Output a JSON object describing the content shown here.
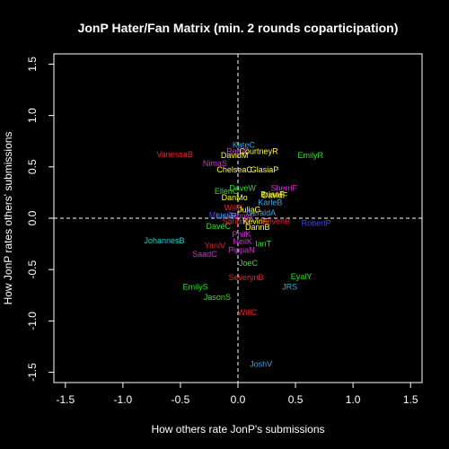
{
  "chart_data": {
    "type": "scatter",
    "title": "JonP Hater/Fan Matrix (min. 2 rounds coparticipation)",
    "xlabel": "How others rate JonP's submissions",
    "ylabel": "How JonP rates others' submissions",
    "xlim": [
      -1.6,
      1.6
    ],
    "ylim": [
      -1.6,
      1.6
    ],
    "xticks": [
      -1.5,
      -1.0,
      -0.5,
      0.0,
      0.5,
      1.0,
      1.5
    ],
    "xtick_labels": [
      "-1.5",
      "-1.0",
      "-0.5",
      "0.0",
      "0.5",
      "1.0",
      "1.5"
    ],
    "yticks": [
      -1.5,
      -1.0,
      -0.5,
      0.0,
      0.5,
      1.0,
      1.5
    ],
    "ytick_labels": [
      "-1.5",
      "-1.0",
      "-0.5",
      "0.0",
      "0.5",
      "1.0",
      "1.5"
    ],
    "reference_lines": {
      "x": 0,
      "y": 0,
      "style": "dashed"
    },
    "background": "#000000",
    "foreground": "#ffffff",
    "points": [
      {
        "label": "KateC",
        "x": 0.05,
        "y": 0.72,
        "color": "#39a7e0"
      },
      {
        "label": "RemC",
        "x": 0.0,
        "y": 0.66,
        "color": "#cc33cc"
      },
      {
        "label": "CourtneyR",
        "x": 0.18,
        "y": 0.66,
        "color": "#ffff44"
      },
      {
        "label": "VanessaB",
        "x": -0.55,
        "y": 0.63,
        "color": "#e3262c"
      },
      {
        "label": "DavidM",
        "x": -0.03,
        "y": 0.62,
        "color": "#ffff44"
      },
      {
        "label": "EmilyR",
        "x": 0.63,
        "y": 0.62,
        "color": "#33dd33"
      },
      {
        "label": "NimaS",
        "x": -0.2,
        "y": 0.54,
        "color": "#cc33cc"
      },
      {
        "label": "ChelseaC",
        "x": -0.03,
        "y": 0.48,
        "color": "#ffff44"
      },
      {
        "label": "GlasiaP",
        "x": 0.23,
        "y": 0.48,
        "color": "#ffff44"
      },
      {
        "label": "DaveW",
        "x": 0.04,
        "y": 0.3,
        "color": "#33dd33"
      },
      {
        "label": "SherriF",
        "x": 0.4,
        "y": 0.3,
        "color": "#cc33cc"
      },
      {
        "label": "EllenC",
        "x": -0.1,
        "y": 0.27,
        "color": "#33dd33"
      },
      {
        "label": "DanMo",
        "x": -0.03,
        "y": 0.21,
        "color": "#ffff44"
      },
      {
        "label": "BrianF",
        "x": 0.3,
        "y": 0.24,
        "color": "#ffff44"
      },
      {
        "label": "DavidF",
        "x": 0.32,
        "y": 0.23,
        "color": "#ffff44"
      },
      {
        "label": "KarleB",
        "x": 0.28,
        "y": 0.16,
        "color": "#39a7e0"
      },
      {
        "label": "WillB",
        "x": -0.04,
        "y": 0.11,
        "color": "#e3262c"
      },
      {
        "label": "JuliaG",
        "x": 0.1,
        "y": 0.09,
        "color": "#ffff44"
      },
      {
        "label": "MauiC",
        "x": -0.15,
        "y": 0.04,
        "color": "#4444ee"
      },
      {
        "label": "LisaR",
        "x": -0.1,
        "y": 0.03,
        "color": "#39a7e0"
      },
      {
        "label": "JennyF",
        "x": 0.03,
        "y": 0.03,
        "color": "#cc33cc"
      },
      {
        "label": "GeraldA",
        "x": 0.2,
        "y": 0.06,
        "color": "#39a7e0"
      },
      {
        "label": "SandraP",
        "x": 0.0,
        "y": -0.02,
        "color": "#e3262c"
      },
      {
        "label": "KevinF",
        "x": 0.15,
        "y": -0.02,
        "color": "#ffff44"
      },
      {
        "label": "StevenB",
        "x": 0.32,
        "y": -0.02,
        "color": "#e3262c"
      },
      {
        "label": "RobertP",
        "x": 0.68,
        "y": -0.04,
        "color": "#4444ee"
      },
      {
        "label": "DaveC",
        "x": -0.17,
        "y": -0.07,
        "color": "#33dd33"
      },
      {
        "label": "DannB",
        "x": 0.17,
        "y": -0.08,
        "color": "#ffff44"
      },
      {
        "label": "PhilK",
        "x": 0.03,
        "y": -0.15,
        "color": "#cc33cc"
      },
      {
        "label": "JohannesB",
        "x": -0.64,
        "y": -0.21,
        "color": "#33cccc"
      },
      {
        "label": "NeilK",
        "x": 0.04,
        "y": -0.22,
        "color": "#cc33cc"
      },
      {
        "label": "IanT",
        "x": 0.22,
        "y": -0.24,
        "color": "#33dd33"
      },
      {
        "label": "YaniV",
        "x": -0.2,
        "y": -0.26,
        "color": "#e3262c"
      },
      {
        "label": "PippaN",
        "x": 0.03,
        "y": -0.3,
        "color": "#cc33cc"
      },
      {
        "label": "SaadC",
        "x": -0.29,
        "y": -0.34,
        "color": "#cc33cc"
      },
      {
        "label": "JoeC",
        "x": 0.09,
        "y": -0.43,
        "color": "#33dd33"
      },
      {
        "label": "SeverynB",
        "x": 0.07,
        "y": -0.57,
        "color": "#e3262c"
      },
      {
        "label": "EyalY",
        "x": 0.55,
        "y": -0.56,
        "color": "#33dd33"
      },
      {
        "label": "EmilyS",
        "x": -0.37,
        "y": -0.66,
        "color": "#33dd33"
      },
      {
        "label": "JRS",
        "x": 0.45,
        "y": -0.66,
        "color": "#39a7e0"
      },
      {
        "label": "JasonS",
        "x": -0.18,
        "y": -0.76,
        "color": "#33dd33"
      },
      {
        "label": "WillC",
        "x": 0.08,
        "y": -0.91,
        "color": "#e3262c"
      },
      {
        "label": "JoshV",
        "x": 0.2,
        "y": -1.41,
        "color": "#39a7e0"
      }
    ]
  }
}
